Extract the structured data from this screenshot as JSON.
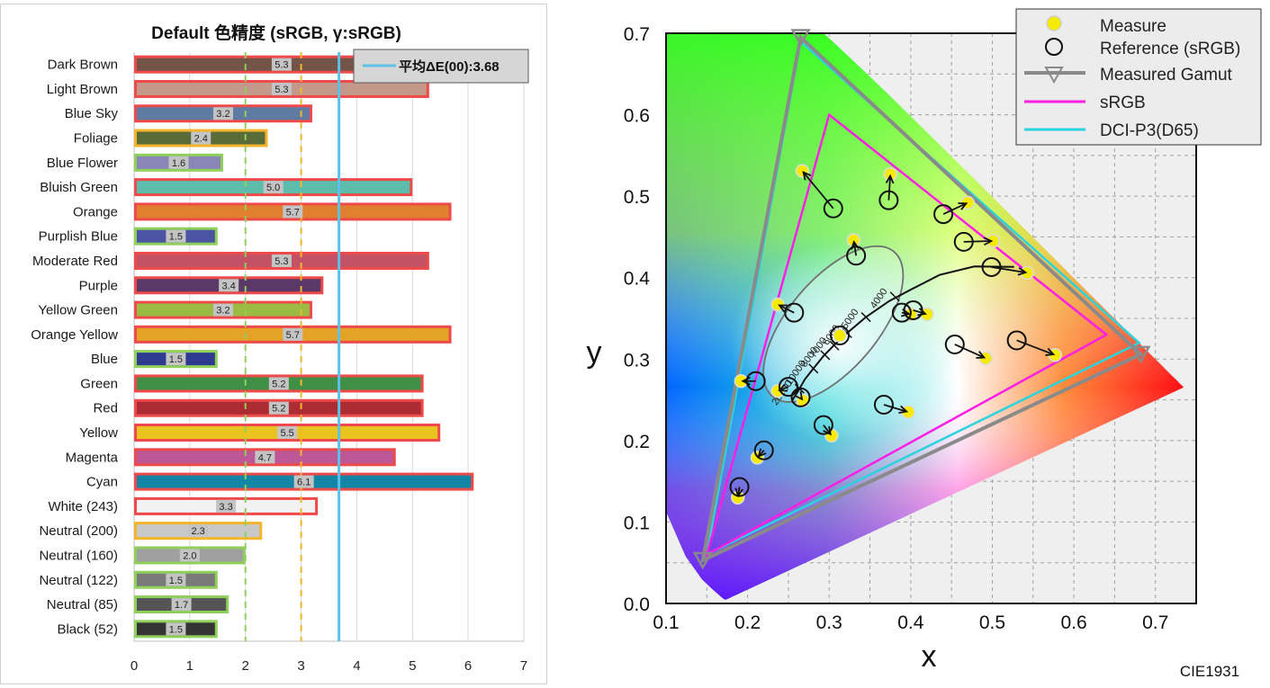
{
  "chart_data": [
    {
      "type": "bar",
      "orientation": "horizontal",
      "title": "Default 色精度 (sRGB, γ:sRGB)",
      "xlim": [
        0,
        7
      ],
      "xticks": [
        "0",
        "1",
        "2",
        "3",
        "4",
        "5",
        "6",
        "7"
      ],
      "grid": true,
      "legend_label": "平均ΔE(00):3.68",
      "average": 3.68,
      "average_color": "#5bc1e8",
      "thresholds": [
        {
          "value": 2,
          "color": "#8fd05a"
        },
        {
          "value": 3,
          "color": "#f5b52a"
        }
      ],
      "rating_colors": {
        "good": "#8fd05a",
        "fair": "#f5b52a",
        "poor": "#ee4a4a"
      },
      "categories": [
        "Dark Brown",
        "Light Brown",
        "Blue Sky",
        "Foliage",
        "Blue Flower",
        "Bluish Green",
        "Orange",
        "Purplish Blue",
        "Moderate Red",
        "Purple",
        "Yellow Green",
        "Orange Yellow",
        "Blue",
        "Green",
        "Red",
        "Yellow",
        "Magenta",
        "Cyan",
        "White (243)",
        "Neutral (200)",
        "Neutral (160)",
        "Neutral (122)",
        "Neutral (85)",
        "Black (52)"
      ],
      "values": [
        5.3,
        5.3,
        3.2,
        2.4,
        1.6,
        5.0,
        5.7,
        1.5,
        5.3,
        3.4,
        3.2,
        5.7,
        1.5,
        5.2,
        5.2,
        5.5,
        4.7,
        6.1,
        3.3,
        2.3,
        2.0,
        1.5,
        1.7,
        1.5
      ],
      "labels": [
        "5.3",
        "5.3",
        "3.2",
        "2.4",
        "1.6",
        "5.0",
        "5.7",
        "1.5",
        "5.3",
        "3.4",
        "3.2",
        "5.7",
        "1.5",
        "5.2",
        "5.2",
        "5.5",
        "4.7",
        "6.1",
        "3.3",
        "2.3",
        "2.0",
        "1.5",
        "1.7",
        "1.5"
      ],
      "fill_colors": [
        "#725448",
        "#c2998a",
        "#5e7ba4",
        "#5a6b3a",
        "#8a86b8",
        "#5cbdac",
        "#e0802e",
        "#4a54a0",
        "#c45266",
        "#5a3868",
        "#9cbb42",
        "#e4a326",
        "#2d3a90",
        "#3f8f46",
        "#ad2c34",
        "#e9c41f",
        "#be5796",
        "#1486a5",
        "#f2f2f2",
        "#c8c8c8",
        "#a0a0a0",
        "#7a7a7a",
        "#555555",
        "#343434"
      ]
    },
    {
      "type": "scatter",
      "title": "",
      "xlabel": "x",
      "ylabel": "y",
      "xlim": [
        0.1,
        0.75
      ],
      "ylim": [
        0.0,
        0.7
      ],
      "xticks": [
        "0.1",
        "0.2",
        "0.3",
        "0.4",
        "0.5",
        "0.6",
        "0.7"
      ],
      "yticks": [
        "0.0",
        "0.1",
        "0.2",
        "0.3",
        "0.4",
        "0.5",
        "0.6",
        "0.7"
      ],
      "grid": true,
      "corner_label": "CIE1931",
      "legend_position": "top-right",
      "legend": [
        "Measure",
        "Reference (sRGB)",
        "Measured Gamut",
        "sRGB",
        "DCI-P3(D65)"
      ],
      "measure_color": "#f5ea00",
      "reference_color": "#111111",
      "series": [
        {
          "name": "Measured Gamut",
          "color": "#8a8a8a",
          "points": [
            [
              0.682,
              0.306
            ],
            [
              0.265,
              0.695
            ],
            [
              0.145,
              0.053
            ]
          ]
        },
        {
          "name": "sRGB",
          "color": "#ff1ee6",
          "points": [
            [
              0.64,
              0.33
            ],
            [
              0.3,
              0.6
            ],
            [
              0.15,
              0.06
            ]
          ]
        },
        {
          "name": "DCI-P3(D65)",
          "color": "#2ad4dc",
          "points": [
            [
              0.68,
              0.32
            ],
            [
              0.265,
              0.69
            ],
            [
              0.15,
              0.06
            ]
          ]
        }
      ],
      "pairs": [
        {
          "measure": [
            0.267,
            0.531
          ],
          "reference": [
            0.305,
            0.485
          ]
        },
        {
          "measure": [
            0.375,
            0.527
          ],
          "reference": [
            0.373,
            0.495
          ]
        },
        {
          "measure": [
            0.47,
            0.492
          ],
          "reference": [
            0.44,
            0.478
          ]
        },
        {
          "measure": [
            0.501,
            0.445
          ],
          "reference": [
            0.465,
            0.444
          ]
        },
        {
          "measure": [
            0.543,
            0.406
          ],
          "reference": [
            0.499,
            0.413
          ]
        },
        {
          "measure": [
            0.33,
            0.446
          ],
          "reference": [
            0.333,
            0.427
          ]
        },
        {
          "measure": [
            0.237,
            0.367
          ],
          "reference": [
            0.257,
            0.357
          ]
        },
        {
          "measure": [
            0.4,
            0.355
          ],
          "reference": [
            0.389,
            0.357
          ]
        },
        {
          "measure": [
            0.42,
            0.355
          ],
          "reference": [
            0.403,
            0.36
          ]
        },
        {
          "measure": [
            0.313,
            0.329
          ],
          "reference": [
            0.313,
            0.329
          ]
        },
        {
          "measure": [
            0.192,
            0.273
          ],
          "reference": [
            0.21,
            0.273
          ]
        },
        {
          "measure": [
            0.237,
            0.261
          ],
          "reference": [
            0.25,
            0.266
          ]
        },
        {
          "measure": [
            0.268,
            0.249
          ],
          "reference": [
            0.265,
            0.253
          ]
        },
        {
          "measure": [
            0.492,
            0.301
          ],
          "reference": [
            0.454,
            0.318
          ]
        },
        {
          "measure": [
            0.577,
            0.305
          ],
          "reference": [
            0.53,
            0.323
          ]
        },
        {
          "measure": [
            0.397,
            0.235
          ],
          "reference": [
            0.367,
            0.244
          ]
        },
        {
          "measure": [
            0.303,
            0.206
          ],
          "reference": [
            0.293,
            0.219
          ]
        },
        {
          "measure": [
            0.212,
            0.179
          ],
          "reference": [
            0.22,
            0.188
          ]
        },
        {
          "measure": [
            0.188,
            0.13
          ],
          "reference": [
            0.19,
            0.143
          ]
        }
      ],
      "planckian": [
        [
          0.5268,
          0.4133
        ],
        [
          0.478,
          0.4137
        ],
        [
          0.4353,
          0.4033
        ],
        [
          0.3995,
          0.385
        ],
        [
          0.3737,
          0.3713
        ],
        [
          0.3451,
          0.3516
        ],
        [
          0.3217,
          0.3318
        ],
        [
          0.3055,
          0.3165
        ],
        [
          0.2936,
          0.3044
        ],
        [
          0.2807,
          0.2884
        ],
        [
          0.2702,
          0.2751
        ],
        [
          0.2637,
          0.2637
        ],
        [
          0.255,
          0.25
        ]
      ],
      "cct_labels": [
        "4000",
        "5000",
        "6000",
        "7000",
        "8000",
        "10000",
        "20000"
      ],
      "cct_points": [
        [
          0.3805,
          0.3768
        ],
        [
          0.3451,
          0.3516
        ],
        [
          0.3221,
          0.3318
        ],
        [
          0.3064,
          0.3166
        ],
        [
          0.2952,
          0.3048
        ],
        [
          0.2807,
          0.2884
        ],
        [
          0.2637,
          0.2637
        ]
      ]
    }
  ]
}
